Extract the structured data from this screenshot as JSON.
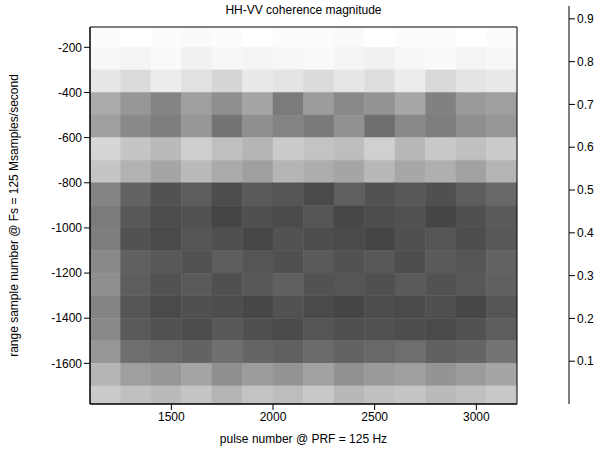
{
  "chart_data": {
    "type": "heatmap",
    "title": "HH-VV coherence magnitude",
    "x_label": "pulse number @ PRF = 125 Hz",
    "y_label": "range sample number @ Fs = 125 Msamples/second",
    "xlim": [
      1100,
      3200
    ],
    "xticks": [
      1500,
      2000,
      2500,
      3000
    ],
    "ylim": [
      -1780,
      -110
    ],
    "yticks": [
      -1600,
      -1400,
      -1200,
      -1000,
      -800,
      -600,
      -400,
      -200
    ],
    "x_edges": [
      1100,
      1250,
      1400,
      1550,
      1700,
      1850,
      2000,
      2150,
      2300,
      2450,
      2600,
      2750,
      2900,
      3050,
      3200
    ],
    "y_edges": [
      -110,
      -200,
      -300,
      -400,
      -500,
      -600,
      -700,
      -800,
      -900,
      -1000,
      -1100,
      -1200,
      -1300,
      -1400,
      -1500,
      -1600,
      -1700,
      -1780
    ],
    "cells": [
      [
        0.92,
        0.93,
        0.92,
        0.91,
        0.92,
        0.93,
        0.92,
        0.92,
        0.91,
        0.93,
        0.92,
        0.92,
        0.93,
        0.92
      ],
      [
        0.9,
        0.89,
        0.91,
        0.88,
        0.9,
        0.89,
        0.9,
        0.91,
        0.89,
        0.88,
        0.9,
        0.91,
        0.89,
        0.9
      ],
      [
        0.84,
        0.8,
        0.86,
        0.82,
        0.78,
        0.85,
        0.83,
        0.8,
        0.84,
        0.81,
        0.86,
        0.79,
        0.83,
        0.85
      ],
      [
        0.62,
        0.55,
        0.48,
        0.58,
        0.52,
        0.6,
        0.45,
        0.57,
        0.5,
        0.54,
        0.61,
        0.47,
        0.56,
        0.58
      ],
      [
        0.58,
        0.5,
        0.46,
        0.55,
        0.42,
        0.52,
        0.48,
        0.44,
        0.53,
        0.4,
        0.5,
        0.46,
        0.52,
        0.55
      ],
      [
        0.78,
        0.72,
        0.68,
        0.75,
        0.7,
        0.66,
        0.74,
        0.71,
        0.69,
        0.76,
        0.67,
        0.73,
        0.7,
        0.74
      ],
      [
        0.72,
        0.65,
        0.6,
        0.68,
        0.62,
        0.58,
        0.66,
        0.63,
        0.6,
        0.67,
        0.61,
        0.64,
        0.59,
        0.66
      ],
      [
        0.48,
        0.36,
        0.3,
        0.34,
        0.28,
        0.33,
        0.31,
        0.27,
        0.35,
        0.3,
        0.32,
        0.29,
        0.34,
        0.38
      ],
      [
        0.45,
        0.32,
        0.28,
        0.3,
        0.25,
        0.29,
        0.27,
        0.31,
        0.26,
        0.28,
        0.3,
        0.25,
        0.29,
        0.33
      ],
      [
        0.46,
        0.3,
        0.27,
        0.31,
        0.29,
        0.26,
        0.3,
        0.28,
        0.27,
        0.25,
        0.29,
        0.31,
        0.28,
        0.32
      ],
      [
        0.5,
        0.35,
        0.32,
        0.3,
        0.34,
        0.31,
        0.29,
        0.33,
        0.3,
        0.32,
        0.28,
        0.33,
        0.31,
        0.36
      ],
      [
        0.52,
        0.34,
        0.3,
        0.33,
        0.29,
        0.32,
        0.35,
        0.3,
        0.31,
        0.29,
        0.33,
        0.3,
        0.32,
        0.35
      ],
      [
        0.48,
        0.31,
        0.27,
        0.29,
        0.28,
        0.26,
        0.3,
        0.27,
        0.25,
        0.28,
        0.27,
        0.29,
        0.26,
        0.31
      ],
      [
        0.5,
        0.33,
        0.3,
        0.28,
        0.32,
        0.29,
        0.27,
        0.31,
        0.29,
        0.3,
        0.28,
        0.27,
        0.3,
        0.34
      ],
      [
        0.55,
        0.4,
        0.38,
        0.36,
        0.41,
        0.37,
        0.35,
        0.39,
        0.36,
        0.38,
        0.4,
        0.35,
        0.37,
        0.42
      ],
      [
        0.66,
        0.58,
        0.55,
        0.6,
        0.52,
        0.57,
        0.54,
        0.59,
        0.53,
        0.56,
        0.58,
        0.54,
        0.57,
        0.6
      ],
      [
        0.74,
        0.7,
        0.68,
        0.72,
        0.66,
        0.71,
        0.69,
        0.73,
        0.67,
        0.7,
        0.72,
        0.68,
        0.7,
        0.73
      ]
    ],
    "colorbar_range": [
      0,
      0.93
    ],
    "colorbar_ticks": [
      0.1,
      0.2,
      0.3,
      0.4,
      0.5,
      0.6,
      0.7,
      0.8,
      0.9
    ]
  }
}
